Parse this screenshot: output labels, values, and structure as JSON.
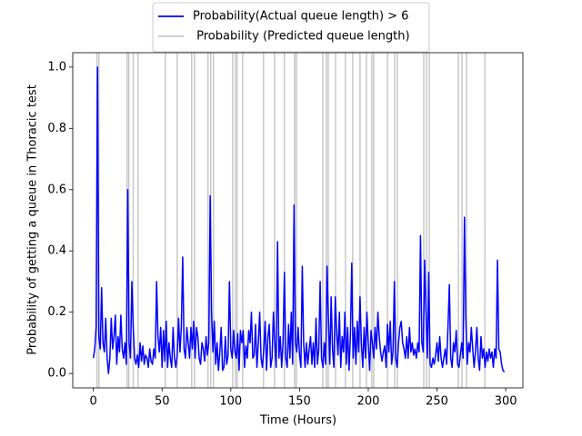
{
  "chart_data": {
    "type": "line",
    "xlabel": "Time (Hours)",
    "ylabel": "Probability of getting a queue in Thoracic test",
    "xlim": [
      -15,
      312.5
    ],
    "ylim": [
      -0.047,
      1.047
    ],
    "xticks": [
      0,
      50,
      100,
      150,
      200,
      250,
      300
    ],
    "yticks": [
      {
        "value": 0,
        "label": "0.0"
      },
      0.2,
      0.4,
      0.6,
      0.8,
      {
        "value": 1,
        "label": "1.0"
      }
    ],
    "legend": "upper center",
    "series": [
      {
        "name": "Probability(Actual queue length) > 6",
        "color": "#0000ff",
        "type": "line",
        "x": [
          0,
          1,
          2,
          3,
          4,
          5,
          6,
          7,
          8,
          9,
          10,
          11,
          12,
          13,
          14,
          15,
          16,
          17,
          18,
          19,
          20,
          21,
          22,
          23,
          24,
          25,
          26,
          27,
          28,
          29,
          30,
          31,
          32,
          33,
          34,
          35,
          36,
          37,
          38,
          39,
          40,
          41,
          42,
          43,
          44,
          45,
          46,
          47,
          48,
          49,
          50,
          51,
          52,
          53,
          54,
          55,
          56,
          57,
          58,
          59,
          60,
          61,
          62,
          63,
          64,
          65,
          66,
          67,
          68,
          69,
          70,
          71,
          72,
          73,
          74,
          75,
          76,
          77,
          78,
          79,
          80,
          81,
          82,
          83,
          84,
          85,
          86,
          87,
          88,
          89,
          90,
          91,
          92,
          93,
          94,
          95,
          96,
          97,
          98,
          99,
          100,
          101,
          102,
          103,
          104,
          105,
          106,
          107,
          108,
          109,
          110,
          111,
          112,
          113,
          114,
          115,
          116,
          117,
          118,
          119,
          120,
          121,
          122,
          123,
          124,
          125,
          126,
          127,
          128,
          129,
          130,
          131,
          132,
          133,
          134,
          135,
          136,
          137,
          138,
          139,
          140,
          141,
          142,
          143,
          144,
          145,
          146,
          147,
          148,
          149,
          150,
          151,
          152,
          153,
          154,
          155,
          156,
          157,
          158,
          159,
          160,
          161,
          162,
          163,
          164,
          165,
          166,
          167,
          168,
          169,
          170,
          171,
          172,
          173,
          174,
          175,
          176,
          177,
          178,
          179,
          180,
          181,
          182,
          183,
          184,
          185,
          186,
          187,
          188,
          189,
          190,
          191,
          192,
          193,
          194,
          195,
          196,
          197,
          198,
          199,
          200,
          201,
          202,
          203,
          204,
          205,
          206,
          207,
          208,
          209,
          210,
          211,
          212,
          213,
          214,
          215,
          216,
          217,
          218,
          219,
          220,
          221,
          222,
          223,
          224,
          225,
          226,
          227,
          228,
          229,
          230,
          231,
          232,
          233,
          234,
          235,
          236,
          237,
          238,
          239,
          240,
          241,
          242,
          243,
          244,
          245,
          246,
          247,
          248,
          249,
          250,
          251,
          252,
          253,
          254,
          255,
          256,
          257,
          258,
          259,
          260,
          261,
          262,
          263,
          264,
          265,
          266,
          267,
          268,
          269,
          270,
          271,
          272,
          273,
          274,
          275,
          276,
          277,
          278,
          279,
          280,
          281,
          282,
          283,
          284,
          285,
          286,
          287,
          288,
          289,
          290,
          291,
          292,
          293,
          294,
          295,
          296,
          297,
          298,
          299
        ],
        "values": [
          0.05,
          0.08,
          0.15,
          1.0,
          0.12,
          0.08,
          0.28,
          0.1,
          0.07,
          0.18,
          0.05,
          0.0,
          0.05,
          0.18,
          0.08,
          0.12,
          0.19,
          0.03,
          0.12,
          0.07,
          0.19,
          0.08,
          0.05,
          0.1,
          0.03,
          0.6,
          0.1,
          0.05,
          0.3,
          0.15,
          0.05,
          0.03,
          0.06,
          0.02,
          0.1,
          0.04,
          0.09,
          0.03,
          0.06,
          0.05,
          0.02,
          0.08,
          0.04,
          0.03,
          0.08,
          0.05,
          0.3,
          0.12,
          0.07,
          0.15,
          0.02,
          0.14,
          0.04,
          0.17,
          0.02,
          0.1,
          0.05,
          0.02,
          0.15,
          0.05,
          0.02,
          0.06,
          0.18,
          0.07,
          0.15,
          0.38,
          0.08,
          0.05,
          0.15,
          0.1,
          0.05,
          0.15,
          0.08,
          0.17,
          0.05,
          0.15,
          0.12,
          0.05,
          0.03,
          0.1,
          0.08,
          0.04,
          0.12,
          0.06,
          0.1,
          0.58,
          0.2,
          0.07,
          0.17,
          0.03,
          0.1,
          0.01,
          0.07,
          0.15,
          0.01,
          0.02,
          0.12,
          0.03,
          0.06,
          0.3,
          0.08,
          0.05,
          0.14,
          0.07,
          0.05,
          0.13,
          0.01,
          0.14,
          0.1,
          0.14,
          0.02,
          0.09,
          0.05,
          0.14,
          0.1,
          0.2,
          0.05,
          0.06,
          0.16,
          0.02,
          0.1,
          0.2,
          0.05,
          0.02,
          0.08,
          0.17,
          0.01,
          0.12,
          0.16,
          0.02,
          0.05,
          0.2,
          0.1,
          0.02,
          0.43,
          0.05,
          0.12,
          0.02,
          0.1,
          0.33,
          0.05,
          0.02,
          0.16,
          0.05,
          0.2,
          0.03,
          0.55,
          0.1,
          0.07,
          0.15,
          0.06,
          0.02,
          0.35,
          0.1,
          0.02,
          0.1,
          0.03,
          0.08,
          0.12,
          0.03,
          0.1,
          0.02,
          0.18,
          0.03,
          0.08,
          0.3,
          0.05,
          0.02,
          0.1,
          0.03,
          0.35,
          0.18,
          0.03,
          0.25,
          0.08,
          0.02,
          0.25,
          0.14,
          0.06,
          0.2,
          0.02,
          0.12,
          0.07,
          0.2,
          0.03,
          0.15,
          0.01,
          0.12,
          0.36,
          0.05,
          0.15,
          0.03,
          0.17,
          0.07,
          0.25,
          0.1,
          0.02,
          0.15,
          0.05,
          0.2,
          0.1,
          0.01,
          0.14,
          0.1,
          0.05,
          0.15,
          0.08,
          0.2,
          0.12,
          0.07,
          0.04,
          0.07,
          0.09,
          0.02,
          0.16,
          0.07,
          0.17,
          0.03,
          0.07,
          0.3,
          0.05,
          0.02,
          0.1,
          0.15,
          0.17,
          0.1,
          0.08,
          0.05,
          0.12,
          0.05,
          0.15,
          0.07,
          0.1,
          0.06,
          0.08,
          0.05,
          0.1,
          0.07,
          0.45,
          0.1,
          0.07,
          0.37,
          0.2,
          0.05,
          0.33,
          0.03,
          0.02,
          0.05,
          0.03,
          0.06,
          0.1,
          0.04,
          0.12,
          0.05,
          0.02,
          0.05,
          0.08,
          0.03,
          0.15,
          0.29,
          0.05,
          0.02,
          0.1,
          0.07,
          0.14,
          0.03,
          0.02,
          0.06,
          0.1,
          0.05,
          0.51,
          0.18,
          0.03,
          0.1,
          0.07,
          0.15,
          0.08,
          0.02,
          0.07,
          0.15,
          0.05,
          0.01,
          0.12,
          0.05,
          0.08,
          0.02,
          0.07,
          0.04,
          0.08,
          0.05,
          0.07,
          0.02,
          0.08,
          0.05,
          0.37,
          0.08,
          0.07,
          0.03,
          0.01,
          0.005
        ]
      },
      {
        "name": " Probability (Predicted queue length)",
        "color": "#c8c8c8",
        "type": "vline",
        "x": [
          2.6,
          4,
          24.5,
          25.8,
          29,
          32.5,
          52.3,
          61,
          71.5,
          73.5,
          83.4,
          85.4,
          87.4,
          101.3,
          103.3,
          104.6,
          108.6,
          123.8,
          131.8,
          139,
          146.4,
          147.7,
          166.9,
          169.5,
          170.9,
          176.2,
          183.4,
          188.7,
          194,
          198.7,
          202.6,
          204,
          214,
          219.2,
          221.2,
          240.4,
          242.4,
          244.4,
          265.6,
          268.2,
          271.5,
          284.8
        ]
      }
    ]
  }
}
